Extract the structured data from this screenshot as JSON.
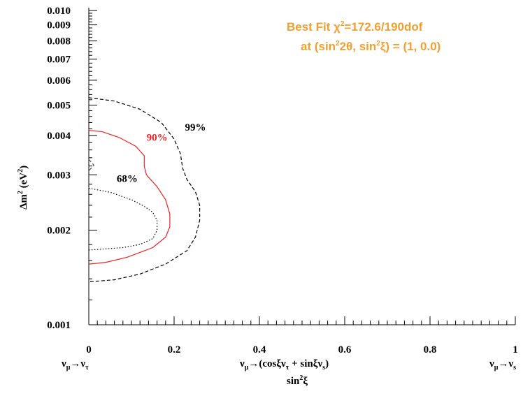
{
  "chart_data": {
    "type": "contour",
    "xlim": [
      0,
      1
    ],
    "ylim": [
      0.001,
      0.01
    ],
    "yscale": "log",
    "x_ticks": [
      "0",
      "0.2",
      "0.4",
      "0.6",
      "0.8",
      "1"
    ],
    "y_ticks": [
      "0.001",
      "0.002",
      "0.003",
      "0.004",
      "0.005",
      "0.006",
      "0.007",
      "0.008",
      "0.009",
      "0.010"
    ],
    "xlabel_under": {
      "left": "νμ→ντ",
      "middle": "νμ→(cosξντ + sinξνs)",
      "right": "νμ→νs"
    },
    "xlabel": "sin²ξ",
    "ylabel": "Δm² (eV²)",
    "annotation": {
      "line1": "Best Fit χ²=172.6/190dof",
      "line2": "at (sin²2θ, sin²ξ) = (1, 0.0)",
      "color": "#f0a030"
    },
    "contours": [
      {
        "label": "68%",
        "color": "#000000",
        "style": "dotted",
        "points": [
          [
            0.0,
            0.00272
          ],
          [
            0.05,
            0.00264
          ],
          [
            0.1,
            0.0025
          ],
          [
            0.13,
            0.00238
          ],
          [
            0.15,
            0.00228
          ],
          [
            0.16,
            0.00215
          ],
          [
            0.16,
            0.002
          ],
          [
            0.15,
            0.00188
          ],
          [
            0.12,
            0.0018
          ],
          [
            0.08,
            0.00176
          ],
          [
            0.03,
            0.00174
          ],
          [
            0.0,
            0.00173
          ]
        ]
      },
      {
        "label": "90%",
        "color": "#ee2222",
        "style": "solid",
        "points": [
          [
            0.0,
            0.00415
          ],
          [
            0.03,
            0.00412
          ],
          [
            0.07,
            0.00395
          ],
          [
            0.11,
            0.0037
          ],
          [
            0.13,
            0.00345
          ],
          [
            0.13,
            0.0032
          ],
          [
            0.135,
            0.003
          ],
          [
            0.16,
            0.00275
          ],
          [
            0.18,
            0.0025
          ],
          [
            0.19,
            0.00225
          ],
          [
            0.19,
            0.00205
          ],
          [
            0.18,
            0.0019
          ],
          [
            0.15,
            0.00176
          ],
          [
            0.09,
            0.00164
          ],
          [
            0.04,
            0.00158
          ],
          [
            0.0,
            0.00156
          ]
        ]
      },
      {
        "label": "99%",
        "color": "#000000",
        "style": "dashed",
        "points": [
          [
            0.0,
            0.00528
          ],
          [
            0.06,
            0.00515
          ],
          [
            0.12,
            0.00485
          ],
          [
            0.17,
            0.0044
          ],
          [
            0.2,
            0.0039
          ],
          [
            0.215,
            0.0035
          ],
          [
            0.22,
            0.00315
          ],
          [
            0.23,
            0.0029
          ],
          [
            0.25,
            0.00265
          ],
          [
            0.26,
            0.0024
          ],
          [
            0.26,
            0.00215
          ],
          [
            0.25,
            0.0019
          ],
          [
            0.23,
            0.00172
          ],
          [
            0.18,
            0.00156
          ],
          [
            0.12,
            0.00145
          ],
          [
            0.06,
            0.00139
          ],
          [
            0.0,
            0.00137
          ]
        ]
      },
      {
        "label": "",
        "color": "#555555",
        "style": "dashed",
        "points": [
          [
            0.0,
            0.00336
          ],
          [
            0.012,
            0.00322
          ],
          [
            0.0,
            0.00309
          ]
        ]
      }
    ],
    "contour_labels": [
      {
        "text": "99%",
        "x": 0.25,
        "y": 0.00415,
        "color": "#000000"
      },
      {
        "text": "90%",
        "x": 0.16,
        "y": 0.00385,
        "color": "#ee2222"
      },
      {
        "text": "68%",
        "x": 0.09,
        "y": 0.00285,
        "color": "#000000"
      }
    ]
  }
}
